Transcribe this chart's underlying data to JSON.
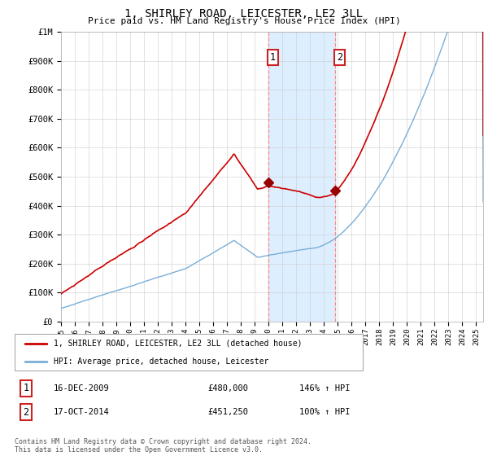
{
  "title": "1, SHIRLEY ROAD, LEICESTER, LE2 3LL",
  "subtitle": "Price paid vs. HM Land Registry's House Price Index (HPI)",
  "hpi_color": "#7aaed6",
  "price_color": "#cc0000",
  "marker_color": "#990000",
  "shading_color": "#ddeeff",
  "vline_color": "#ff8888",
  "ylim": [
    0,
    1000000
  ],
  "yticks": [
    0,
    100000,
    200000,
    300000,
    400000,
    500000,
    600000,
    700000,
    800000,
    900000,
    1000000
  ],
  "ytick_labels": [
    "£0",
    "£100K",
    "£200K",
    "£300K",
    "£400K",
    "£500K",
    "£600K",
    "£700K",
    "£800K",
    "£900K",
    "£1M"
  ],
  "t1_year": 2009.958,
  "t2_year": 2014.792,
  "price1": 480000,
  "price2": 451250,
  "legend_line1": "1, SHIRLEY ROAD, LEICESTER, LE2 3LL (detached house)",
  "legend_line2": "HPI: Average price, detached house, Leicester",
  "footer": "Contains HM Land Registry data © Crown copyright and database right 2024.\nThis data is licensed under the Open Government Licence v3.0.",
  "table_row1": [
    "1",
    "16-DEC-2009",
    "£480,000",
    "146% ↑ HPI"
  ],
  "table_row2": [
    "2",
    "17-OCT-2014",
    "£451,250",
    "100% ↑ HPI"
  ]
}
